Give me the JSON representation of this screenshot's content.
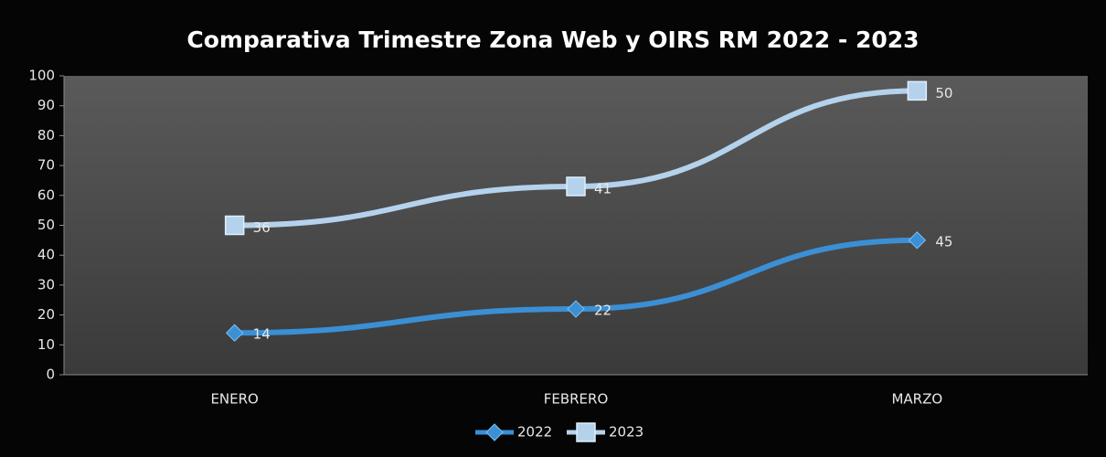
{
  "chart_data": {
    "type": "line",
    "stacked": true,
    "title": "Comparativa Trimestre Zona Web y OIRS RM 2022 - 2023",
    "categories": [
      "ENERO",
      "FEBRERO",
      "MARZO"
    ],
    "series": [
      {
        "name": "2022",
        "color": "#3b8fd4",
        "marker": "diamond",
        "values": [
          14,
          22,
          45
        ]
      },
      {
        "name": "2023",
        "color": "#b4d2ec",
        "marker": "square",
        "values": [
          36,
          41,
          50
        ]
      }
    ],
    "ylim": [
      0,
      100
    ],
    "yticks": [
      0,
      10,
      20,
      30,
      40,
      50,
      60,
      70,
      80,
      90,
      100
    ],
    "legend": "bottom"
  }
}
